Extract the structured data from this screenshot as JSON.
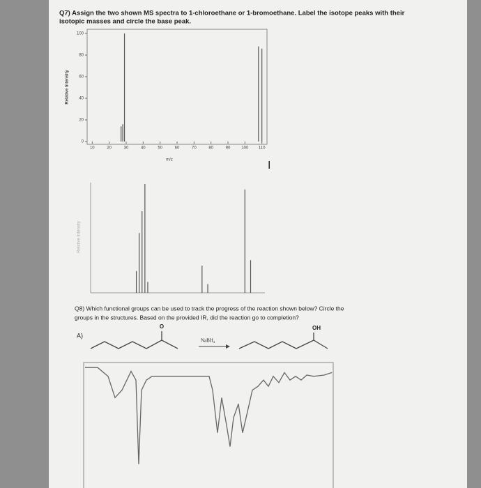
{
  "q7": {
    "text_line1": "Q7) Assign the two shown MS spectra to 1-chloroethane or 1-bromoethane. Label the isotope peaks with their",
    "text_line2": "isotopic masses and circle the base peak.",
    "spectrum1": {
      "type": "bar",
      "ylabel": "Relative Intensity",
      "xlabel": "m/z",
      "x": [
        27,
        28,
        29,
        108,
        110
      ],
      "values": [
        14,
        16,
        100,
        88,
        86
      ],
      "xlim": [
        7,
        113
      ],
      "ylim": [
        0,
        100
      ],
      "xticks": [
        10,
        20,
        30,
        40,
        50,
        60,
        70,
        80,
        90,
        100,
        110
      ],
      "yticks": [
        0,
        20,
        40,
        60,
        80,
        100
      ]
    },
    "spectrum2": {
      "type": "bar",
      "ylabel": "Relative Intensity",
      "x": [
        26,
        27,
        28,
        29,
        30,
        49,
        51,
        64,
        66
      ],
      "values": [
        20,
        55,
        75,
        100,
        10,
        25,
        8,
        95,
        30
      ],
      "xlim": [
        10,
        71
      ],
      "ylim": [
        0,
        100
      ]
    }
  },
  "q8": {
    "text_line1": "Q8) Which functional groups can be used to track the progress of the reaction shown below? Circle the",
    "text_line2": "groups in the structures. Based on the provided IR, did the reaction go to completion?",
    "part": "A)",
    "reactant_label": "O",
    "reagent": "NaBH₄",
    "product_label": "OH"
  },
  "ir": {
    "type": "line",
    "xlim": [
      4000,
      500
    ],
    "ylim": [
      0,
      100
    ],
    "x": [
      3980,
      3804,
      3658,
      3560,
      3462,
      3335,
      3267,
      3228,
      3189,
      3120,
      3042,
      2240,
      2191,
      2123,
      2064,
      1996,
      1947,
      1898,
      1830,
      1771,
      1702,
      1634,
      1556,
      1478,
      1409,
      1341,
      1263,
      1184,
      1106,
      1028,
      950,
      871,
      774,
      627,
      519
    ],
    "values": [
      96,
      96,
      89,
      72,
      78,
      93,
      86,
      19,
      78,
      86,
      89,
      89,
      78,
      44,
      72,
      50,
      33,
      56,
      67,
      44,
      61,
      78,
      81,
      86,
      81,
      89,
      84,
      92,
      86,
      89,
      86,
      90,
      89,
      90,
      92
    ]
  }
}
